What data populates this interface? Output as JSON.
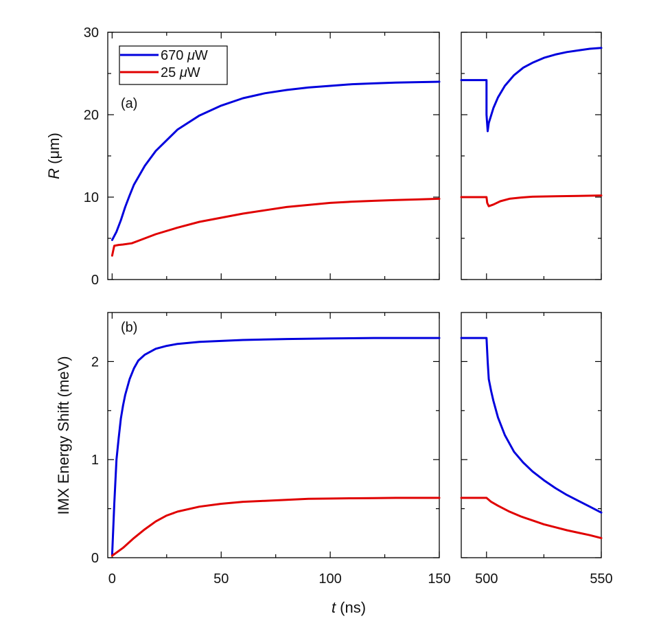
{
  "chart_data": {
    "type": "line",
    "xlabel": {
      "var": "t",
      "unit": " (ns)"
    },
    "colors": {
      "blue": "#0000dd",
      "red": "#e00000"
    },
    "legend": [
      {
        "name": "670 μW",
        "num": "670 ",
        "unit": "μ",
        "rest": "W",
        "color": "#0000dd"
      },
      {
        "name": "25 μW",
        "num": "25 ",
        "unit": "μ",
        "rest": "W",
        "color": "#e00000"
      }
    ],
    "panels": [
      {
        "id": "a",
        "label": "(a)",
        "ylabel": {
          "var": "R",
          "unit": " (μm)"
        },
        "ylim": [
          0,
          30
        ],
        "yticks": [
          "0",
          "10",
          "20",
          "30"
        ],
        "left_xlim": [
          -2,
          150
        ],
        "right_xlim": [
          489,
          550
        ],
        "series": [
          {
            "name": "670 μW",
            "color": "#0000dd",
            "left": {
              "x": [
                0,
                2,
                4,
                6,
                8,
                10,
                15,
                20,
                30,
                40,
                50,
                60,
                70,
                80,
                90,
                100,
                110,
                120,
                130,
                140,
                150
              ],
              "y": [
                4.8,
                5.8,
                7.2,
                8.8,
                10.2,
                11.5,
                13.8,
                15.6,
                18.2,
                19.9,
                21.1,
                22.0,
                22.6,
                23.0,
                23.3,
                23.5,
                23.7,
                23.8,
                23.9,
                23.95,
                24.0
              ]
            },
            "right": {
              "x": [
                489,
                495,
                500,
                500,
                500.5,
                501,
                503,
                505,
                508,
                512,
                516,
                520,
                525,
                530,
                535,
                540,
                545,
                550
              ],
              "y": [
                24.2,
                24.2,
                24.2,
                20.0,
                18.0,
                19.0,
                20.8,
                22.1,
                23.5,
                24.8,
                25.7,
                26.3,
                26.9,
                27.3,
                27.6,
                27.8,
                28.0,
                28.1
              ]
            }
          },
          {
            "name": "25 μW",
            "color": "#e00000",
            "left": {
              "x": [
                0,
                0.5,
                1,
                3,
                5,
                9,
                12,
                20,
                30,
                40,
                50,
                60,
                70,
                80,
                90,
                100,
                110,
                120,
                130,
                140,
                150
              ],
              "y": [
                2.9,
                3.5,
                4.1,
                4.2,
                4.25,
                4.4,
                4.7,
                5.5,
                6.3,
                7.0,
                7.5,
                8.0,
                8.4,
                8.8,
                9.05,
                9.3,
                9.45,
                9.55,
                9.65,
                9.72,
                9.8
              ]
            },
            "right": {
              "x": [
                489,
                495,
                500,
                500.3,
                501,
                503,
                506,
                510,
                515,
                520,
                530,
                540,
                550
              ],
              "y": [
                10.0,
                10.0,
                10.0,
                9.3,
                8.9,
                9.1,
                9.5,
                9.8,
                9.95,
                10.05,
                10.1,
                10.15,
                10.2
              ]
            }
          }
        ]
      },
      {
        "id": "b",
        "label": "(b)",
        "ylabel": {
          "var": "",
          "unit": "IMX Energy Shift (meV)"
        },
        "ylim": [
          0,
          2.5
        ],
        "yticks": [
          "0",
          "1",
          "2"
        ],
        "left_xlim": [
          -2,
          150
        ],
        "right_xlim": [
          489,
          550
        ],
        "xticks_left": [
          "0",
          "50",
          "100",
          "150"
        ],
        "xticks_right": [
          "500",
          "550"
        ],
        "series": [
          {
            "name": "670 μW",
            "color": "#0000dd",
            "left": {
              "x": [
                0,
                1,
                2,
                3,
                4,
                5,
                6,
                8,
                10,
                12,
                15,
                20,
                25,
                30,
                40,
                50,
                60,
                80,
                100,
                120,
                150
              ],
              "y": [
                0.03,
                0.55,
                1.0,
                1.22,
                1.42,
                1.55,
                1.66,
                1.82,
                1.93,
                2.01,
                2.07,
                2.13,
                2.16,
                2.18,
                2.2,
                2.21,
                2.22,
                2.23,
                2.235,
                2.24,
                2.24
              ]
            },
            "right": {
              "x": [
                489,
                495,
                500,
                500.5,
                501,
                502,
                503,
                505,
                508,
                512,
                516,
                520,
                525,
                530,
                535,
                540,
                545,
                550
              ],
              "y": [
                2.24,
                2.24,
                2.24,
                2.0,
                1.82,
                1.7,
                1.6,
                1.43,
                1.25,
                1.08,
                0.97,
                0.88,
                0.79,
                0.71,
                0.64,
                0.58,
                0.52,
                0.46
              ]
            }
          },
          {
            "name": "25 μW",
            "color": "#e00000",
            "left": {
              "x": [
                0,
                5,
                10,
                15,
                20,
                25,
                30,
                40,
                50,
                60,
                70,
                80,
                90,
                100,
                110,
                120,
                130,
                140,
                150
              ],
              "y": [
                0.02,
                0.1,
                0.2,
                0.29,
                0.37,
                0.43,
                0.47,
                0.52,
                0.55,
                0.57,
                0.58,
                0.59,
                0.6,
                0.603,
                0.606,
                0.608,
                0.61,
                0.61,
                0.61
              ]
            },
            "right": {
              "x": [
                489,
                495,
                500,
                502,
                505,
                510,
                515,
                520,
                525,
                530,
                535,
                540,
                545,
                550
              ],
              "y": [
                0.61,
                0.61,
                0.61,
                0.57,
                0.53,
                0.47,
                0.42,
                0.38,
                0.34,
                0.31,
                0.28,
                0.255,
                0.23,
                0.2
              ]
            }
          }
        ]
      }
    ]
  }
}
